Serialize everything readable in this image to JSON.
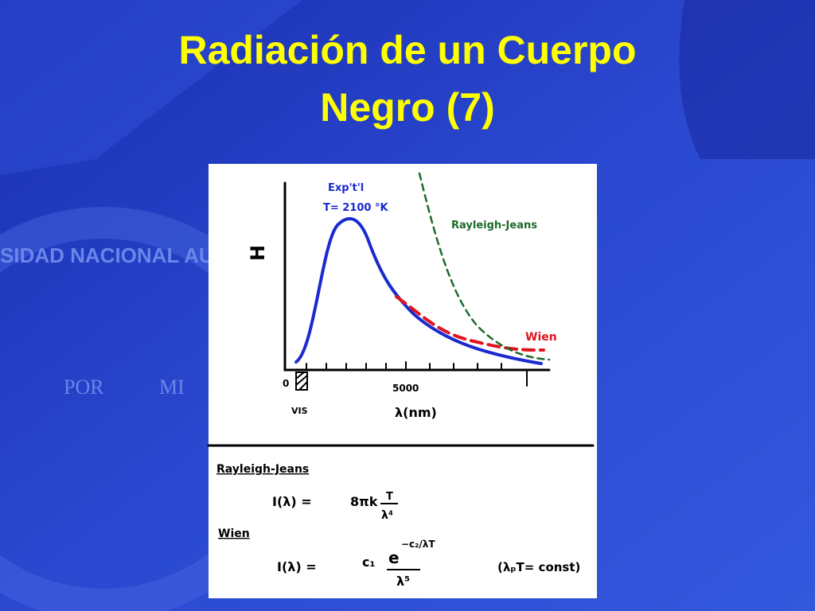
{
  "slide": {
    "title": [
      "Radiación de un Cuerpo",
      "Negro (7)"
    ],
    "background": {
      "seal_top": "SIDAD NACIONAL AUTÓNO",
      "seal_left": "POR",
      "seal_right": "MI"
    },
    "figure": {
      "plot": {
        "note_1": "Exp't'l",
        "note_2": "T= 2100 °K",
        "y_label": "H",
        "rj_label": "Rayleigh-Jeans",
        "wien_label": "Wien",
        "x_tick_0": "0",
        "x_tick_5000": "5000",
        "vis": "VIS",
        "x_label": "λ(nm)"
      },
      "formulas": {
        "rj_heading": "Rayleigh-Jeans",
        "rj": {
          "lhs": "I(λ) =",
          "coef": "8πk",
          "num": "T",
          "den": "λ⁴"
        },
        "wien_heading": "Wien",
        "wien": {
          "lhs": "I(λ) =",
          "coef": "c₁",
          "num": "e",
          "exp": "−c₂/λT",
          "den": "λ⁵",
          "note": "(λₚT= const)"
        }
      }
    }
  }
}
